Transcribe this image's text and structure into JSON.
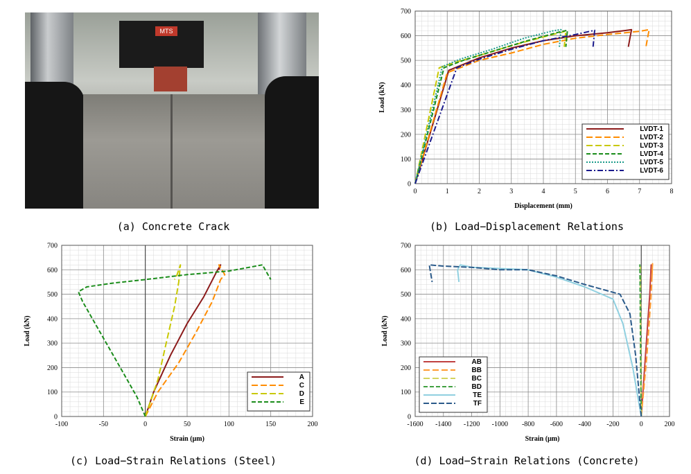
{
  "captions": {
    "a": "(a) Concrete Crack",
    "b": "(b) Load−Displacement Relations",
    "c": "(c) Load−Strain Relations (Steel)",
    "d": "(d) Load−Strain Relations (Concrete)"
  },
  "photo": {
    "plate_text": "MTS"
  },
  "chart_data": [
    {
      "id": "b",
      "type": "line",
      "xlabel": "Displacement (mm)",
      "ylabel": "Load (kN)",
      "xlim": [
        0,
        8
      ],
      "ylim": [
        0,
        700
      ],
      "xticks": [
        0,
        1,
        2,
        3,
        4,
        5,
        6,
        7,
        8
      ],
      "yticks": [
        0,
        100,
        200,
        300,
        400,
        500,
        600,
        700
      ],
      "grid": true,
      "legend": "bottom-right",
      "series": [
        {
          "name": "LVDT-1",
          "color": "#8b1a1a",
          "dash": "",
          "x": [
            0,
            1.05,
            2,
            3,
            4,
            5,
            6,
            6.6,
            6.75,
            6.65
          ],
          "y": [
            0,
            460,
            510,
            550,
            580,
            600,
            612,
            622,
            625,
            555
          ]
        },
        {
          "name": "LVDT-2",
          "color": "#ff8c00",
          "dash": "9,4",
          "x": [
            0,
            1.0,
            2,
            3,
            4,
            5,
            6,
            7,
            7.3,
            7.2
          ],
          "y": [
            0,
            450,
            500,
            530,
            565,
            590,
            605,
            618,
            625,
            555
          ]
        },
        {
          "name": "LVDT-3",
          "color": "#c8c800",
          "dash": "9,4",
          "x": [
            0,
            0.75,
            1.2,
            2,
            3,
            4,
            4.6,
            4.7,
            4.65
          ],
          "y": [
            0,
            470,
            490,
            520,
            560,
            595,
            615,
            620,
            555
          ]
        },
        {
          "name": "LVDT-4",
          "color": "#1a8c1a",
          "dash": "6,3",
          "x": [
            0,
            0.9,
            1.5,
            2.5,
            3.5,
            4.5,
            4.75,
            4.7
          ],
          "y": [
            0,
            470,
            500,
            540,
            580,
            615,
            622,
            555
          ]
        },
        {
          "name": "LVDT-5",
          "color": "#1a9a8a",
          "dash": "2,2",
          "x": [
            0,
            0.85,
            1.4,
            2.4,
            3.4,
            4.3,
            4.55,
            4.5
          ],
          "y": [
            0,
            475,
            505,
            545,
            590,
            620,
            625,
            555
          ]
        },
        {
          "name": "LVDT-6",
          "color": "#1a1a8c",
          "dash": "8,3,2,3",
          "x": [
            0,
            1.3,
            2,
            3,
            4,
            5,
            5.6,
            5.55
          ],
          "y": [
            0,
            470,
            505,
            545,
            580,
            605,
            622,
            555
          ]
        }
      ]
    },
    {
      "id": "c",
      "type": "line",
      "xlabel": "Strain (μm)",
      "ylabel": "Load (kN)",
      "xlim": [
        -100,
        200
      ],
      "ylim": [
        0,
        700
      ],
      "xticks": [
        -100,
        -50,
        0,
        50,
        100,
        150,
        200
      ],
      "yticks": [
        0,
        100,
        200,
        300,
        400,
        500,
        600,
        700
      ],
      "grid": true,
      "legend": "bottom-right",
      "series": [
        {
          "name": "A",
          "color": "#8b1a1a",
          "dash": "",
          "x": [
            0,
            10,
            30,
            50,
            70,
            85,
            90,
            88
          ],
          "y": [
            0,
            100,
            250,
            380,
            490,
            590,
            620,
            600
          ]
        },
        {
          "name": "C",
          "color": "#ff8c00",
          "dash": "9,4",
          "x": [
            0,
            15,
            40,
            60,
            80,
            90,
            95,
            88,
            90
          ],
          "y": [
            0,
            100,
            220,
            340,
            470,
            560,
            580,
            620,
            600
          ]
        },
        {
          "name": "D",
          "color": "#c8c800",
          "dash": "9,4",
          "x": [
            0,
            15,
            25,
            35,
            40,
            42,
            38,
            35
          ],
          "y": [
            0,
            150,
            300,
            450,
            550,
            620,
            580,
            560
          ]
        },
        {
          "name": "E",
          "color": "#1a8c1a",
          "dash": "6,3",
          "x": [
            0,
            -10,
            -30,
            -55,
            -75,
            -80,
            -70,
            -40,
            0,
            50,
            100,
            140,
            145,
            150
          ],
          "y": [
            0,
            80,
            200,
            350,
            470,
            510,
            530,
            545,
            560,
            580,
            595,
            620,
            590,
            560
          ]
        }
      ]
    },
    {
      "id": "d",
      "type": "line",
      "xlabel": "Strain (μm)",
      "ylabel": "Load (kN)",
      "xlim": [
        -1600,
        200
      ],
      "ylim": [
        0,
        700
      ],
      "xticks": [
        -1600,
        -1400,
        -1200,
        -1000,
        -800,
        -600,
        -400,
        -200,
        0,
        200
      ],
      "yticks": [
        0,
        100,
        200,
        300,
        400,
        500,
        600,
        700
      ],
      "grid": true,
      "legend": "bottom-left",
      "series": [
        {
          "name": "AB",
          "color": "#c04040",
          "dash": "",
          "x": [
            0,
            30,
            60,
            70,
            65
          ],
          "y": [
            0,
            250,
            500,
            620,
            560
          ]
        },
        {
          "name": "BB",
          "color": "#ff9a30",
          "dash": "9,4",
          "x": [
            0,
            40,
            70,
            80,
            75
          ],
          "y": [
            0,
            250,
            500,
            625,
            560
          ]
        },
        {
          "name": "BC",
          "color": "#d4d460",
          "dash": "9,4",
          "x": [
            0,
            -3,
            -5,
            -6,
            -4
          ],
          "y": [
            0,
            250,
            500,
            620,
            560
          ]
        },
        {
          "name": "BD",
          "color": "#40a040",
          "dash": "6,3",
          "x": [
            0,
            -5,
            -8,
            -10,
            -6
          ],
          "y": [
            0,
            250,
            500,
            620,
            560
          ]
        },
        {
          "name": "TE",
          "color": "#90d0e0",
          "dash": "",
          "x": [
            0,
            -60,
            -130,
            -200,
            -400,
            -600,
            -800,
            -1000,
            -1200,
            -1280,
            -1300,
            -1290
          ],
          "y": [
            0,
            200,
            380,
            480,
            530,
            570,
            600,
            605,
            610,
            620,
            600,
            550
          ]
        },
        {
          "name": "TF",
          "color": "#2a5a8a",
          "dash": "8,3",
          "x": [
            0,
            -40,
            -80,
            -150,
            -400,
            -600,
            -800,
            -1000,
            -1200,
            -1400,
            -1500,
            -1480
          ],
          "y": [
            0,
            250,
            420,
            500,
            540,
            575,
            600,
            600,
            610,
            615,
            620,
            550
          ]
        }
      ]
    }
  ]
}
